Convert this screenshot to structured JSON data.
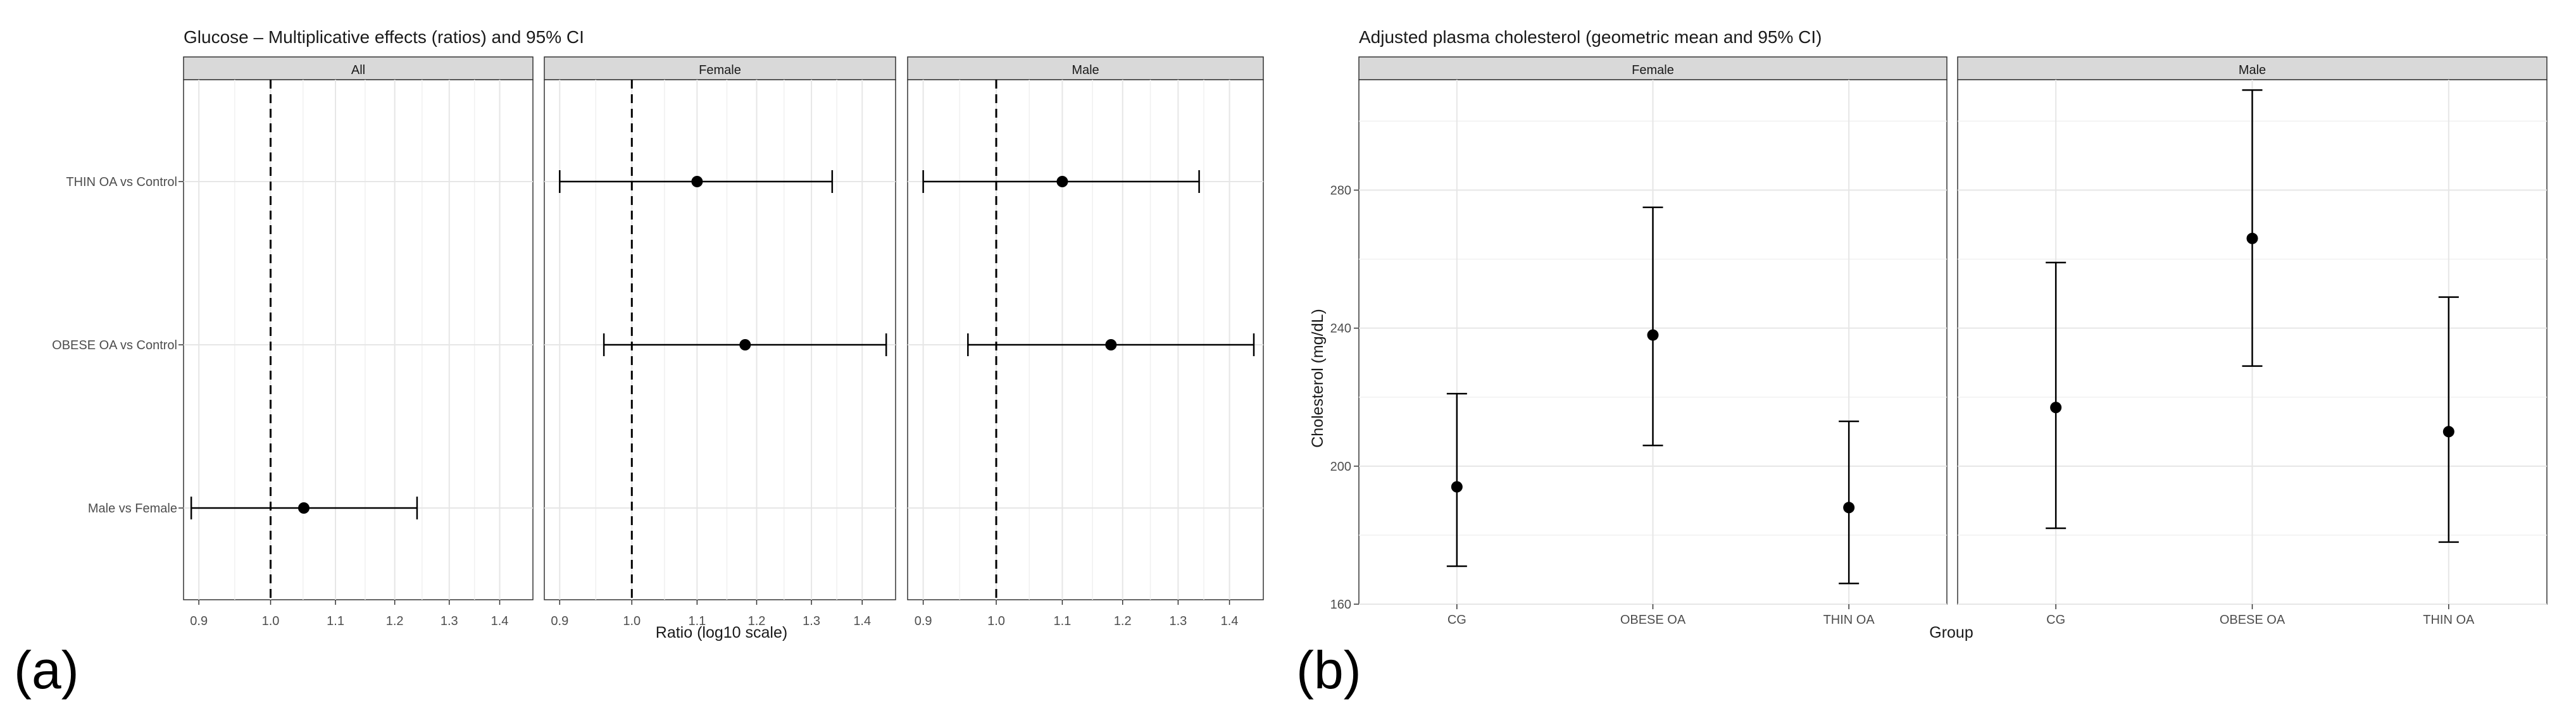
{
  "panel_labels": {
    "a": "(a)",
    "b": "(b)"
  },
  "chart_data": [
    {
      "type": "forest",
      "title": "Glucose – Multiplicative effects (ratios) and 95% CI",
      "xlabel": "Ratio (log10 scale)",
      "xscale": "log10",
      "xlim": [
        0.88,
        1.47
      ],
      "x_ticks": [
        0.9,
        1.0,
        1.1,
        1.2,
        1.3,
        1.4
      ],
      "x_tick_labels": [
        "0.9",
        "1.0",
        "1.1",
        "1.2",
        "1.3",
        "1.4"
      ],
      "reference_line": 1.0,
      "rows": [
        "THIN OA vs Control",
        "OBESE OA vs Control",
        "Male vs Female"
      ],
      "facets": [
        {
          "name": "All",
          "points": [
            {
              "row": "Male vs Female",
              "estimate": 1.05,
              "lower": 0.89,
              "upper": 1.24
            }
          ]
        },
        {
          "name": "Female",
          "points": [
            {
              "row": "THIN OA vs Control",
              "estimate": 1.1,
              "lower": 0.9,
              "upper": 1.34
            },
            {
              "row": "OBESE OA vs Control",
              "estimate": 1.18,
              "lower": 0.96,
              "upper": 1.45
            }
          ]
        },
        {
          "name": "Male",
          "points": [
            {
              "row": "THIN OA vs Control",
              "estimate": 1.1,
              "lower": 0.9,
              "upper": 1.34
            },
            {
              "row": "OBESE OA vs Control",
              "estimate": 1.18,
              "lower": 0.96,
              "upper": 1.45
            }
          ]
        }
      ],
      "grid": true
    },
    {
      "type": "errorbar",
      "title": "Adjusted plasma cholesterol (geometric mean and 95% CI)",
      "xlabel": "Group",
      "ylabel": "Cholesterol (mg/dL)",
      "ylim": [
        160,
        312
      ],
      "y_ticks": [
        160,
        200,
        240,
        280
      ],
      "categories": [
        "CG",
        "OBESE OA",
        "THIN OA"
      ],
      "facets": [
        {
          "name": "Female",
          "points": [
            {
              "group": "CG",
              "mean": 194,
              "lower": 171,
              "upper": 221
            },
            {
              "group": "OBESE OA",
              "mean": 238,
              "lower": 206,
              "upper": 275
            },
            {
              "group": "THIN OA",
              "mean": 188,
              "lower": 166,
              "upper": 213
            }
          ]
        },
        {
          "name": "Male",
          "points": [
            {
              "group": "CG",
              "mean": 217,
              "lower": 182,
              "upper": 259
            },
            {
              "group": "OBESE OA",
              "mean": 266,
              "lower": 229,
              "upper": 309
            },
            {
              "group": "THIN OA",
              "mean": 210,
              "lower": 178,
              "upper": 249
            }
          ]
        }
      ],
      "grid": true
    }
  ]
}
